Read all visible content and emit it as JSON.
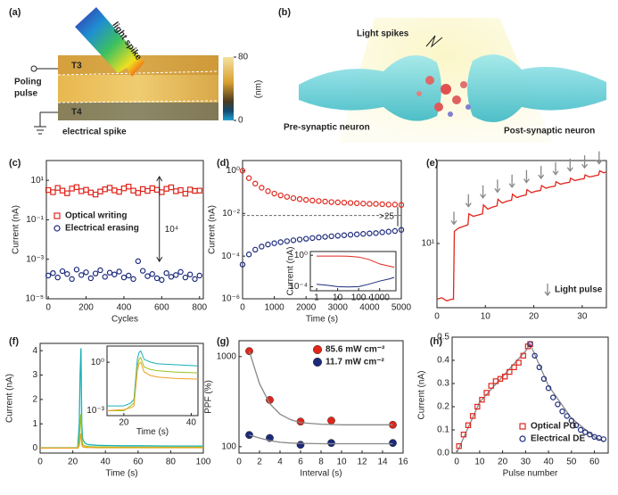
{
  "panels": {
    "a": {
      "label": "(a)",
      "light_spike": "light spike",
      "poling_pulse": [
        "Poling",
        "pulse"
      ],
      "t3": "T3",
      "t4": "T4",
      "electrical_spike": "electrical spike",
      "colorbar": {
        "lim": [
          0,
          80
        ],
        "ticks": [
          80,
          0
        ],
        "unit": "(nm)"
      }
    },
    "b": {
      "label": "(b)",
      "light_spikes": "Light spikes",
      "pre": "Pre-synaptic neuron",
      "post": "Post-synaptic neuron"
    }
  },
  "chart_data": [
    {
      "type": "scatter",
      "label": "(c)",
      "xlabel": "Cycles",
      "ylabel": "Current (nA)",
      "xlim": [
        -10,
        820
      ],
      "xticks": [
        0,
        200,
        400,
        600,
        800
      ],
      "log_y": true,
      "ylim": [
        1e-05,
        100
      ],
      "yticks": [
        {
          "value": 10,
          "label": "10¹"
        },
        {
          "value": 0.1,
          "label": "10⁻¹"
        },
        {
          "value": 0.001,
          "label": "10⁻³"
        },
        {
          "value": 1e-05,
          "label": "10⁻⁵"
        }
      ],
      "legend": "center left",
      "annotation": "10⁴",
      "x": [
        0,
        25,
        50,
        75,
        100,
        125,
        150,
        175,
        200,
        225,
        250,
        275,
        300,
        325,
        350,
        375,
        400,
        425,
        450,
        475,
        500,
        525,
        550,
        575,
        600,
        625,
        650,
        675,
        700,
        725,
        750,
        775,
        800
      ],
      "series": [
        {
          "name": "Optical writing",
          "color": "#e0251b",
          "marker": "square",
          "values": [
            3.2,
            2.5,
            4.1,
            3.0,
            2.2,
            3.8,
            4.5,
            2.8,
            3.3,
            2.4,
            1.9,
            2.7,
            3.5,
            4.2,
            3.1,
            2.6,
            3.9,
            4.8,
            3.0,
            2.3,
            3.6,
            2.9,
            4.0,
            3.3,
            2.5,
            3.7,
            4.4,
            2.8,
            3.2,
            2.1,
            3.4,
            2.9,
            3.0
          ]
        },
        {
          "name": "Electrical erasing",
          "color": "#1c2a7a",
          "marker": "circle",
          "values": [
            0.00015,
            0.0002,
            0.00012,
            0.00025,
            0.00018,
            0.0001,
            0.0003,
            0.00016,
            0.00022,
            0.00011,
            0.00019,
            0.00028,
            0.00013,
            0.00021,
            0.00017,
            0.00024,
            0.00012,
            0.00015,
            0.0001,
            0.0008,
            0.00026,
            0.00014,
            0.00018,
            0.00011,
            9e-05,
            0.0002,
            0.00013,
            0.00016,
            0.00023,
            0.00012,
            0.00017,
            0.0001,
            0.00015
          ]
        }
      ]
    },
    {
      "type": "scatter",
      "label": "(d)",
      "xlabel": "Time (s)",
      "ylabel": "Current (nA)",
      "xlim": [
        0,
        5000
      ],
      "xticks": [
        0,
        1000,
        2000,
        3000,
        4000,
        5000
      ],
      "log_y": true,
      "ylim": [
        1e-06,
        3
      ],
      "yticks": [
        {
          "value": 1,
          "label": "10⁰"
        },
        {
          "value": 0.01,
          "label": "10⁻²"
        },
        {
          "value": 0.0001,
          "label": "10⁻⁴"
        },
        {
          "value": 1e-06,
          "label": "10⁻⁶"
        }
      ],
      "ref_line": 0.008,
      "annotation": ">25",
      "x": [
        0,
        200,
        400,
        600,
        800,
        1000,
        1200,
        1400,
        1600,
        1800,
        2000,
        2200,
        2400,
        2600,
        2800,
        3000,
        3200,
        3400,
        3600,
        3800,
        4000,
        4200,
        4400,
        4600,
        4800,
        5000
      ],
      "series": [
        {
          "color": "#e0251b",
          "marker": "circle",
          "values": [
            1.0,
            0.45,
            0.25,
            0.16,
            0.11,
            0.085,
            0.07,
            0.06,
            0.052,
            0.047,
            0.043,
            0.04,
            0.038,
            0.036,
            0.034,
            0.033,
            0.032,
            0.031,
            0.03,
            0.029,
            0.028,
            0.028,
            0.027,
            0.026,
            0.026,
            0.025
          ]
        },
        {
          "color": "#1c2a7a",
          "marker": "circle",
          "values": [
            4e-05,
            0.00012,
            0.0002,
            0.00028,
            0.00035,
            0.0004,
            0.00045,
            0.0005,
            0.00055,
            0.0006,
            0.00065,
            0.0007,
            0.00075,
            0.0008,
            0.00085,
            0.0009,
            0.00095,
            0.001,
            0.00105,
            0.0011,
            0.00115,
            0.0012,
            0.0013,
            0.0014,
            0.0015,
            0.0017
          ]
        }
      ],
      "inset": {
        "type": "line",
        "ylabel": "Current (nA)",
        "log_x": true,
        "xlim": [
          0.5,
          6000
        ],
        "xticks": [
          1,
          10,
          100,
          1000
        ],
        "log_y": true,
        "ylim": [
          3e-05,
          3
        ],
        "yticks": [
          {
            "value": 1,
            "label": "10⁰"
          },
          {
            "value": 0.0001,
            "label": "10⁻⁴"
          }
        ],
        "x": [
          1,
          3,
          10,
          30,
          100,
          300,
          1000,
          3000,
          5000
        ],
        "series": [
          {
            "color": "#e0251b",
            "values": [
              0.8,
              0.8,
              0.78,
              0.75,
              0.6,
              0.3,
              0.08,
              0.04,
              0.03
            ]
          },
          {
            "color": "#1c2a7a",
            "values": [
              0.0002,
              0.00015,
              0.0001,
              9e-05,
              0.0001,
              0.0002,
              0.0005,
              0.001,
              0.0015
            ]
          }
        ]
      }
    },
    {
      "type": "line",
      "label": "(e)",
      "xlim": [
        0,
        35
      ],
      "xticks": [
        0,
        10,
        20,
        30
      ],
      "log_y": true,
      "ylim": [
        2.5,
        60
      ],
      "yticks": [
        {
          "value": 10,
          "label": "10¹"
        }
      ],
      "pulses": [
        3.5,
        6.5,
        9.5,
        12.5,
        15.5,
        18.5,
        21.5,
        24.5,
        27.5,
        30.5,
        33.5
      ],
      "pulse_label": "Light pulse",
      "x": [
        0,
        1,
        2,
        3,
        3.4,
        3.6,
        4.5,
        5.5,
        6.4,
        6.6,
        7.5,
        8.5,
        9.4,
        9.6,
        10.5,
        11.5,
        12.4,
        12.6,
        13.5,
        14.5,
        15.4,
        15.6,
        16.5,
        17.5,
        18.4,
        18.6,
        19.5,
        20.5,
        21.4,
        21.6,
        22.5,
        23.5,
        24.4,
        24.6,
        25.5,
        26.5,
        27.4,
        27.6,
        28.5,
        29.5,
        30.4,
        30.6,
        31.5,
        32.5,
        33.4,
        33.6,
        34.5,
        35
      ],
      "series": [
        {
          "color": "#e0251b",
          "values": [
            3,
            3.1,
            2.9,
            3,
            3,
            13,
            14,
            14.5,
            15,
            19,
            18,
            18.5,
            19,
            23,
            21,
            22,
            22.5,
            26,
            24,
            25,
            25.5,
            29,
            27,
            28,
            28.5,
            32,
            30,
            31,
            31.5,
            35,
            33,
            34,
            34.5,
            38,
            36,
            37,
            37.5,
            41,
            39,
            40,
            40.5,
            44,
            42,
            43,
            44,
            48,
            46,
            47
          ]
        }
      ]
    },
    {
      "type": "line",
      "label": "(f)",
      "xlabel": "Time (s)",
      "ylabel": "Current (nA)",
      "xlim": [
        0,
        100
      ],
      "xticks": [
        0,
        20,
        40,
        60,
        80,
        100
      ],
      "ylim": [
        -0.2,
        4.3
      ],
      "yticks": [
        0,
        1,
        2,
        3,
        4
      ],
      "x": [
        0,
        20,
        23,
        24,
        24.5,
        25,
        25.5,
        26,
        27,
        28,
        30,
        35,
        40,
        50,
        60,
        80,
        100
      ],
      "series": [
        {
          "color": "#17b0b8",
          "values": [
            0.02,
            0.02,
            0.02,
            1.0,
            3.0,
            4.1,
            1.0,
            0.4,
            0.25,
            0.18,
            0.14,
            0.12,
            0.11,
            0.1,
            0.1,
            0.09,
            0.09
          ]
        },
        {
          "color": "#9ac21f",
          "values": [
            0.01,
            0.01,
            0.01,
            0.3,
            1.0,
            1.4,
            0.4,
            0.15,
            0.1,
            0.08,
            0.06,
            0.05,
            0.05,
            0.04,
            0.04,
            0.04,
            0.04
          ]
        },
        {
          "color": "#f0a020",
          "values": [
            0.005,
            0.005,
            0.005,
            0.1,
            0.4,
            0.6,
            0.15,
            0.06,
            0.04,
            0.03,
            0.03,
            0.02,
            0.02,
            0.02,
            0.02,
            0.02,
            0.02
          ]
        }
      ],
      "inset": {
        "type": "line",
        "xlabel": "Time (s)",
        "xlim": [
          15,
          42
        ],
        "xticks": [
          20,
          40
        ],
        "log_y": true,
        "ylim": [
          0.0005,
          10
        ],
        "yticks": [
          {
            "value": 1,
            "label": "10⁰"
          },
          {
            "value": 0.001,
            "label": "10⁻³"
          }
        ],
        "x": [
          15,
          20,
          22,
          23,
          24,
          24.5,
          25,
          26,
          28,
          30,
          35,
          42
        ],
        "series": [
          {
            "color": "#17b0b8",
            "values": [
              0.002,
              0.002,
              0.003,
              0.005,
              1.5,
              4,
              5,
              1.5,
              1.0,
              0.8,
              0.7,
              0.6
            ]
          },
          {
            "color": "#9ac21f",
            "values": [
              0.001,
              0.001,
              0.002,
              0.003,
              0.6,
              1.5,
              2,
              0.5,
              0.35,
              0.3,
              0.25,
              0.22
            ]
          },
          {
            "color": "#f0a020",
            "values": [
              0.001,
              0.0012,
              0.0015,
              0.002,
              0.3,
              0.8,
              1,
              0.25,
              0.15,
              0.12,
              0.1,
              0.09
            ]
          }
        ]
      }
    },
    {
      "type": "scatter",
      "label": "(g)",
      "xlabel": "Interval (s)",
      "ylabel": "PPF (%)",
      "xlim": [
        0,
        16
      ],
      "xticks": [
        0,
        2,
        4,
        6,
        8,
        10,
        12,
        14,
        16
      ],
      "log_y": true,
      "ylim": [
        85,
        1500
      ],
      "yticks": [
        100,
        1000
      ],
      "legend": "upper right",
      "series": [
        {
          "name": "85.6 mW cm⁻²",
          "color": "#e0251b",
          "marker": "ball",
          "x": [
            1,
            3,
            6,
            9,
            15
          ],
          "values": [
            1150,
            330,
            190,
            195,
            175
          ]
        },
        {
          "name": "11.7 mW cm⁻²",
          "color": "#1c2a7a",
          "marker": "ball",
          "x": [
            1,
            3,
            6,
            9,
            15
          ],
          "values": [
            135,
            125,
            105,
            110,
            110
          ]
        },
        {
          "color": "#888888",
          "line": true,
          "marker": "none",
          "x": [
            1,
            2,
            3,
            4,
            5,
            6,
            8,
            10,
            12,
            15
          ],
          "values": [
            1150,
            500,
            300,
            230,
            200,
            185,
            178,
            175,
            175,
            175
          ]
        },
        {
          "color": "#888888",
          "line": true,
          "marker": "none",
          "x": [
            1,
            2,
            3,
            4,
            5,
            6,
            8,
            10,
            12,
            15
          ],
          "values": [
            135,
            125,
            117,
            112,
            110,
            109,
            108,
            108,
            108,
            108
          ]
        }
      ]
    },
    {
      "type": "scatter",
      "label": "(h)",
      "xlabel": "Pulse number",
      "ylabel": "Current (nA)",
      "xlim": [
        -2,
        66
      ],
      "xticks": [
        0,
        10,
        20,
        30,
        40,
        50,
        60
      ],
      "ylim": [
        0,
        0.5
      ],
      "yticks": [
        {
          "value": 0,
          "label": "0.0"
        },
        0.1,
        0.2,
        0.3,
        0.4,
        0.5
      ],
      "legend": "lower right",
      "series": [
        {
          "color": "#888888",
          "line": true,
          "marker": "none",
          "x": [
            0,
            10,
            20,
            30,
            32,
            40,
            50,
            60,
            64
          ],
          "values": [
            0,
            0.22,
            0.33,
            0.44,
            0.47,
            0.29,
            0.15,
            0.07,
            0.05
          ]
        },
        {
          "name": "Optical PO",
          "color": "#e0251b",
          "marker": "square",
          "x": [
            1,
            3,
            5,
            7,
            9,
            11,
            13,
            15,
            17,
            19,
            21,
            23,
            25,
            27,
            29,
            31,
            32
          ],
          "values": [
            0.03,
            0.08,
            0.12,
            0.16,
            0.2,
            0.23,
            0.26,
            0.29,
            0.31,
            0.32,
            0.33,
            0.35,
            0.37,
            0.39,
            0.42,
            0.46,
            0.47
          ]
        },
        {
          "name": "Electrical DE",
          "color": "#1c2a7a",
          "marker": "circle",
          "x": [
            32,
            34,
            36,
            38,
            40,
            42,
            44,
            46,
            48,
            50,
            52,
            54,
            56,
            58,
            60,
            62,
            64
          ],
          "values": [
            0.47,
            0.42,
            0.37,
            0.32,
            0.28,
            0.24,
            0.21,
            0.18,
            0.16,
            0.14,
            0.12,
            0.1,
            0.09,
            0.08,
            0.07,
            0.065,
            0.06
          ]
        }
      ]
    }
  ]
}
